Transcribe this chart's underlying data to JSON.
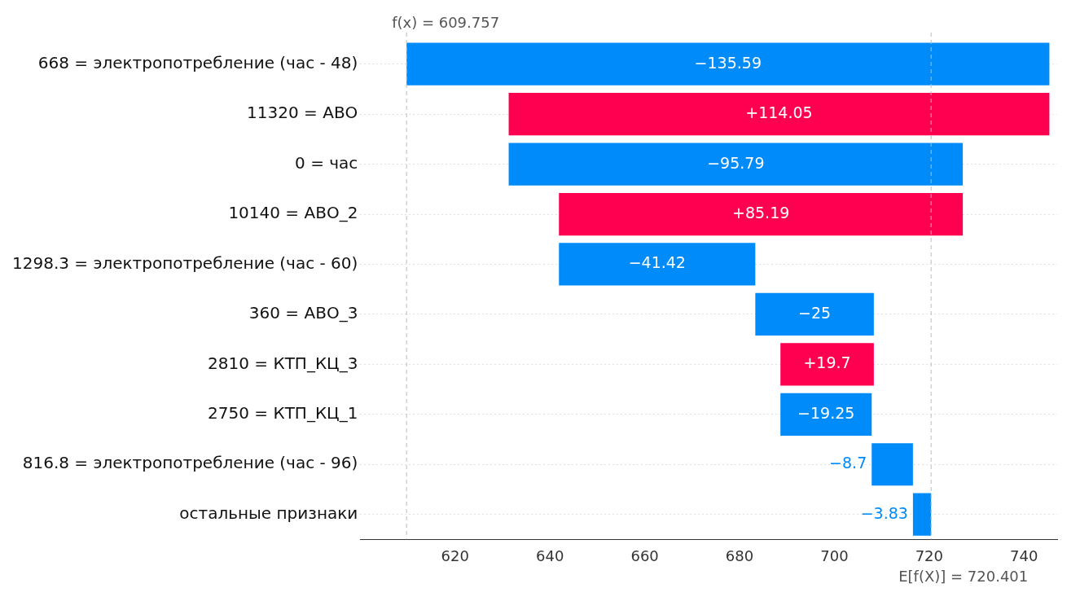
{
  "chart_data": {
    "type": "bar",
    "orientation": "horizontal",
    "categories": [
      "668 = электропотребление (час - 48)",
      "11320 = АВО",
      "0 = час",
      "10140 = АВО_2",
      "1298.3 = электропотребление (час - 60)",
      "360 = АВО_3",
      "2810 = КТП_КЦ_3",
      "2750 = КТП_КЦ_1",
      "816.8 = электропотребление (час - 96)",
      "остальные признаки"
    ],
    "base": [
      745.351,
      631.301,
      727.091,
      641.901,
      683.321,
      708.321,
      688.621,
      707.871,
      716.571,
      720.401
    ],
    "values": [
      -135.59,
      114.05,
      -95.79,
      85.19,
      -41.42,
      -25,
      19.7,
      -19.25,
      -8.7,
      -3.83
    ],
    "colors": [
      "#008bfb",
      "#ff0051",
      "#008bfb",
      "#ff0051",
      "#008bfb",
      "#008bfb",
      "#ff0051",
      "#008bfb",
      "#008bfb",
      "#008bfb"
    ],
    "value_labels": [
      "−135.59",
      "+114.05",
      "−95.79",
      "+85.19",
      "−41.42",
      "−25",
      "+19.7",
      "−19.25",
      "−8.7",
      "−3.83"
    ],
    "xlim": [
      600,
      747
    ],
    "xticks": [
      620,
      640,
      660,
      680,
      700,
      720,
      740
    ],
    "grid": "y",
    "ref_lines": [
      {
        "axis": "x",
        "value": 609.757,
        "label": "f(x) = 609.757",
        "color": "#bbbbbb",
        "line_style": "dashed"
      },
      {
        "axis": "x",
        "value": 720.401,
        "label": "E[f(X)] = 720.401",
        "color": "#bbbbbb",
        "line_style": "dashed"
      }
    ]
  }
}
